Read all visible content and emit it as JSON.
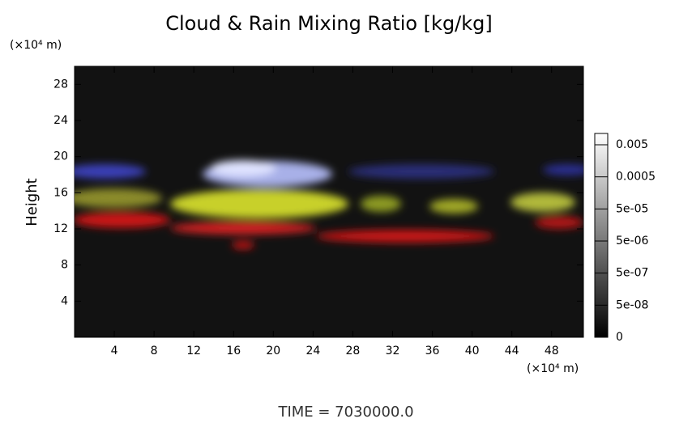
{
  "chart_data": {
    "type": "volume-render",
    "title": "Cloud & Rain Mixing Ratio [kg/kg]",
    "y_unit": "(×10⁴ m)",
    "y_label": "Height",
    "x_unit": "(×10⁴ m)",
    "xlim": [
      0,
      51.2
    ],
    "xticks": [
      4,
      8,
      12,
      16,
      20,
      24,
      28,
      32,
      36,
      40,
      44,
      48
    ],
    "ylim": [
      0,
      30
    ],
    "yticks": [
      4,
      8,
      12,
      16,
      20,
      24,
      28
    ],
    "colorbar_ticks": [
      0,
      {
        "value": 5e-08,
        "label": "5e-08"
      },
      {
        "value": 5e-07,
        "label": "5e-07"
      },
      {
        "value": 5e-06,
        "label": "5e-06"
      },
      {
        "value": 5e-05,
        "label": "5e-05"
      },
      0.0005,
      0.005
    ],
    "time_label": "TIME = 7030000.0"
  }
}
